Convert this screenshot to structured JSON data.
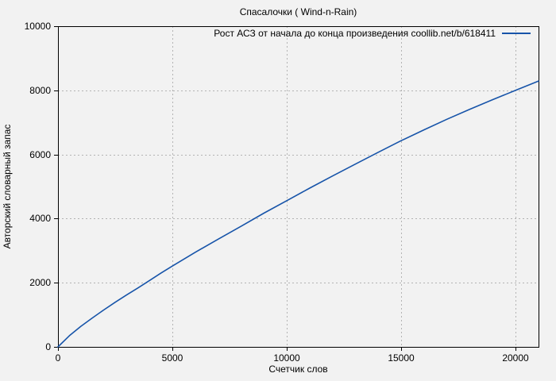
{
  "chart_data": {
    "type": "line",
    "title": "Спасалочки ( Wind-n-Rain)",
    "xlabel": "Счетчик слов",
    "ylabel": "Авторский словарный запас",
    "xlim": [
      0,
      21000
    ],
    "ylim": [
      0,
      10000
    ],
    "x_ticks": [
      0,
      5000,
      10000,
      15000,
      20000
    ],
    "y_ticks": [
      0,
      2000,
      4000,
      6000,
      8000,
      10000
    ],
    "grid": true,
    "legend_position": "top-right-inside",
    "colors": {
      "line": "#1754a9",
      "grid": "#b3b3b3",
      "frame": "#000000",
      "background": "#f2f2f2",
      "text": "#000000"
    },
    "series": [
      {
        "name": "Рост АСЗ от начала до конца произведения coollib.net/b/618411",
        "points": [
          [
            0,
            0
          ],
          [
            500,
            350
          ],
          [
            1000,
            640
          ],
          [
            1500,
            900
          ],
          [
            2000,
            1150
          ],
          [
            2500,
            1390
          ],
          [
            3000,
            1620
          ],
          [
            3500,
            1840
          ],
          [
            4000,
            2070
          ],
          [
            4500,
            2300
          ],
          [
            5000,
            2520
          ],
          [
            6000,
            2950
          ],
          [
            7000,
            3360
          ],
          [
            8000,
            3760
          ],
          [
            9000,
            4170
          ],
          [
            10000,
            4560
          ],
          [
            11000,
            4950
          ],
          [
            12000,
            5330
          ],
          [
            13000,
            5700
          ],
          [
            14000,
            6070
          ],
          [
            15000,
            6430
          ],
          [
            16000,
            6770
          ],
          [
            17000,
            7100
          ],
          [
            18000,
            7410
          ],
          [
            19000,
            7710
          ],
          [
            20000,
            8000
          ],
          [
            21000,
            8290
          ]
        ]
      }
    ]
  }
}
